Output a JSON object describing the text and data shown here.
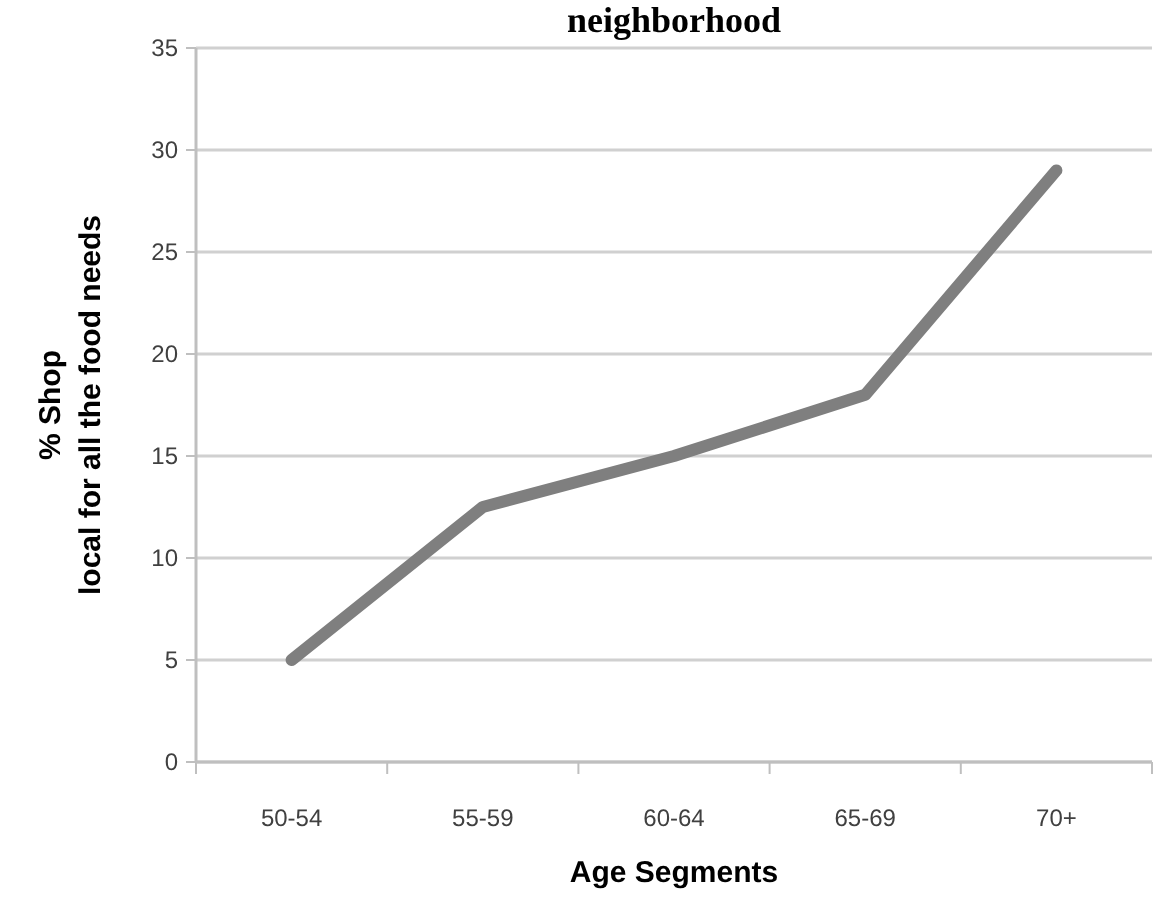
{
  "chart_data": {
    "type": "line",
    "title": "neighborhood",
    "xlabel": "Age Segments",
    "ylabel": "% Shop\nlocal for all the food needs",
    "categories": [
      "50-54",
      "55-59",
      "60-64",
      "65-69",
      "70+"
    ],
    "series": [
      {
        "color": "#7f7f7f",
        "values": [
          5,
          12.5,
          15,
          18,
          29
        ]
      }
    ],
    "ylim": [
      0,
      35
    ],
    "yticks": [
      0,
      5,
      10,
      15,
      20,
      25,
      30,
      35
    ],
    "grid": "y",
    "marker": "none",
    "line_style": "solid"
  }
}
